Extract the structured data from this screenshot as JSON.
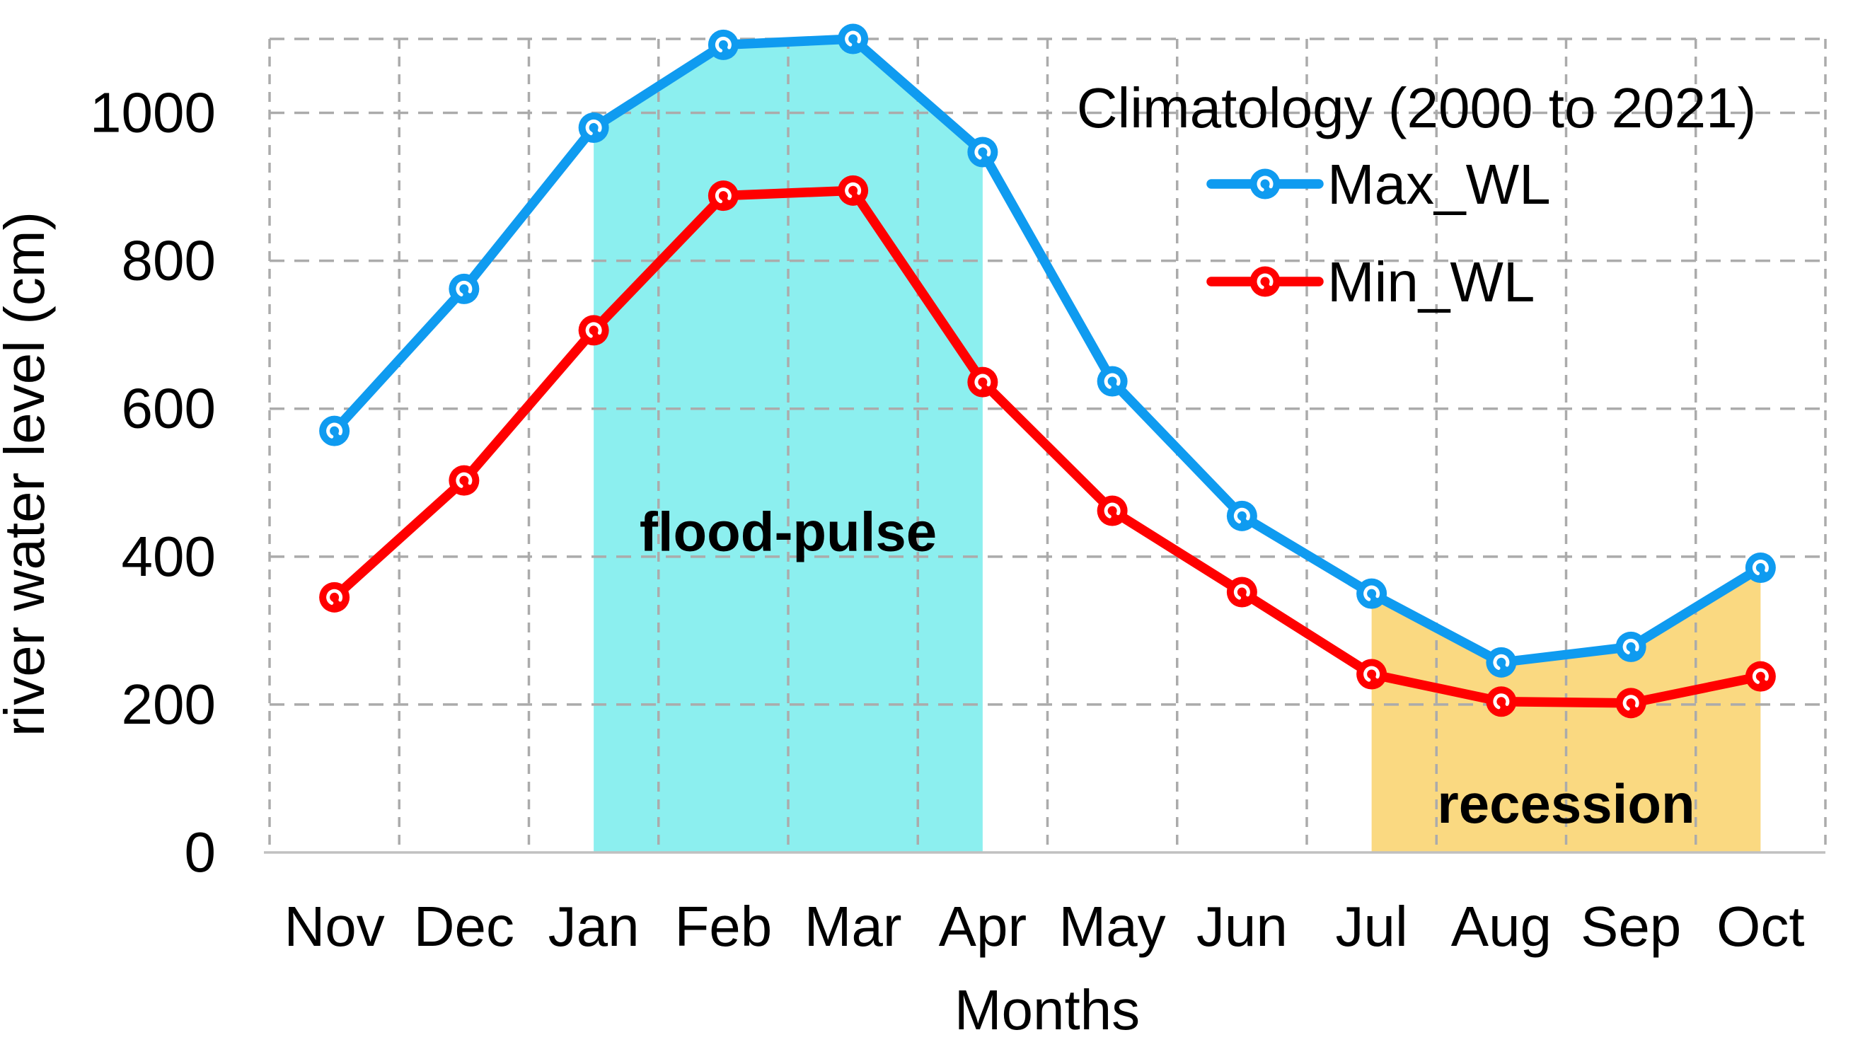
{
  "chart_data": {
    "type": "line",
    "title": "",
    "legend_title": "Climatology (2000 to 2021)",
    "xlabel": "Months",
    "ylabel": "river water level (cm)",
    "categories": [
      "Nov",
      "Dec",
      "Jan",
      "Feb",
      "Mar",
      "Apr",
      "May",
      "Jun",
      "Jul",
      "Aug",
      "Sep",
      "Oct"
    ],
    "series": [
      {
        "name": "Max_WL",
        "color": "#0F9BF0",
        "values": [
          570,
          762,
          980,
          1092,
          1100,
          947,
          637,
          455,
          350,
          257,
          278,
          385
        ]
      },
      {
        "name": "Min_WL",
        "color": "#FF0000",
        "values": [
          345,
          503,
          706,
          888,
          895,
          636,
          462,
          352,
          241,
          204,
          202,
          238
        ]
      }
    ],
    "ylim": [
      0,
      1100
    ],
    "yticks": [
      0,
      200,
      400,
      600,
      800,
      1000
    ],
    "grid": "dashed",
    "legend_position": "top-right",
    "regions": [
      {
        "label": "flood-pulse",
        "start": "Jan",
        "end": "Apr",
        "fill": "#8CEFEF",
        "bound_series": "Max_WL",
        "label_value_y": 408
      },
      {
        "label": "recession",
        "start": "Jul",
        "end": "Oct",
        "fill": "#FAD981",
        "bound_series": "Max_WL",
        "label_value_y": 40
      }
    ]
  },
  "colors": {
    "background": "#FFFFFF",
    "gridline": "#ABABAB",
    "axis_line": "#C0C0C0",
    "text": "#000000",
    "max_series": "#0F9BF0",
    "min_series": "#FF0000",
    "flood_pulse_fill": "#8CEFEF",
    "recession_fill": "#FAD981"
  }
}
